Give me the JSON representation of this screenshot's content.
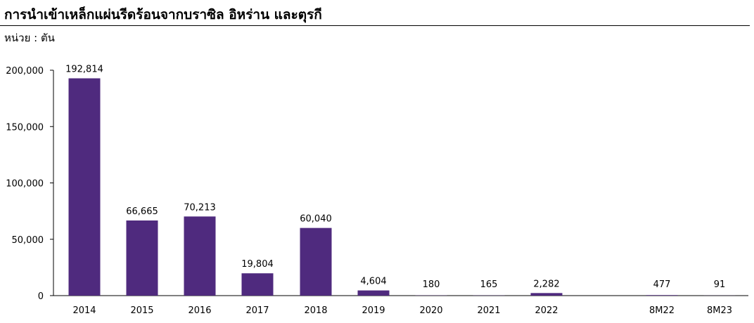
{
  "title": "การนำเข้าเหล็กแผ่นรีดร้อนจากบราซิล อิหร่าน และตุรกี",
  "unit_label": "หน่วย : ตัน",
  "chart_data": {
    "type": "bar",
    "categories": [
      "2014",
      "2015",
      "2016",
      "2017",
      "2018",
      "2019",
      "2020",
      "2021",
      "2022",
      "8M22",
      "8M23"
    ],
    "values": [
      192814,
      66665,
      70213,
      19804,
      60040,
      4604,
      180,
      165,
      2282,
      477,
      91
    ],
    "value_labels": [
      "192,814",
      "66,665",
      "70,213",
      "19,804",
      "60,040",
      "4,604",
      "180",
      "165",
      "2,282",
      "477",
      "91"
    ],
    "yticks": [
      0,
      50000,
      100000,
      150000,
      200000
    ],
    "ytick_labels": [
      "0",
      "50,000",
      "100,000",
      "150,000",
      "200,000"
    ],
    "ylim": [
      0,
      200000
    ],
    "bar_color": "#4f2a7e",
    "grid": false
  }
}
